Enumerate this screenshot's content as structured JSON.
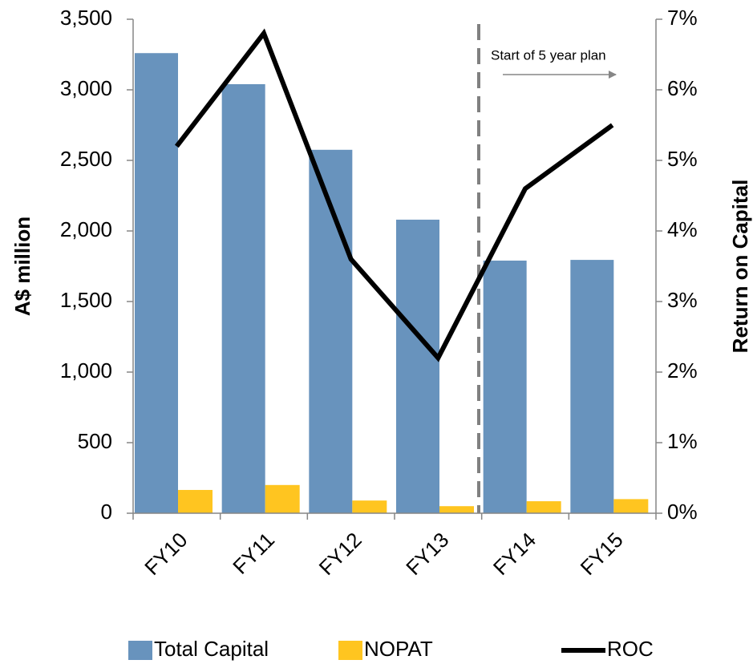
{
  "chart_data": {
    "type": "bar",
    "categories": [
      "FY10",
      "FY11",
      "FY12",
      "FY13",
      "FY14",
      "FY15"
    ],
    "series": [
      {
        "name": "Total Capital",
        "color": "#6893bd",
        "values": [
          3260,
          3040,
          2575,
          2080,
          1790,
          1795
        ]
      },
      {
        "name": "NOPAT",
        "color": "#ffc520",
        "values": [
          165,
          200,
          90,
          50,
          85,
          100
        ]
      },
      {
        "name": "ROC",
        "color": "#000000",
        "type": "line",
        "axis": "y2",
        "values": [
          5.2,
          6.8,
          3.6,
          2.2,
          4.6,
          5.5
        ]
      }
    ],
    "ylabel": "A$ million",
    "y2label": "Return on Capital",
    "ylim": [
      0,
      3500
    ],
    "yticks": [
      0,
      500,
      {
        "value": 1000,
        "label": "1,000"
      },
      {
        "value": 1500,
        "label": "1,500"
      },
      {
        "value": 2000,
        "label": "2,000"
      },
      {
        "value": 2500,
        "label": "2,500"
      },
      {
        "value": 3000,
        "label": "3,000"
      },
      {
        "value": 3500,
        "label": "3,500"
      }
    ],
    "y2lim": [
      0,
      7
    ],
    "y2ticks": [
      {
        "value": 0,
        "label": "0%"
      },
      {
        "value": 1,
        "label": "1%"
      },
      {
        "value": 2,
        "label": "2%"
      },
      {
        "value": 3,
        "label": "3%"
      },
      {
        "value": 4,
        "label": "4%"
      },
      {
        "value": 5,
        "label": "5%"
      },
      {
        "value": 6,
        "label": "6%"
      },
      {
        "value": 7,
        "label": "7%"
      }
    ],
    "annotations": [
      "Start of 5 year plan"
    ],
    "legend": "bottom",
    "grid": false
  }
}
